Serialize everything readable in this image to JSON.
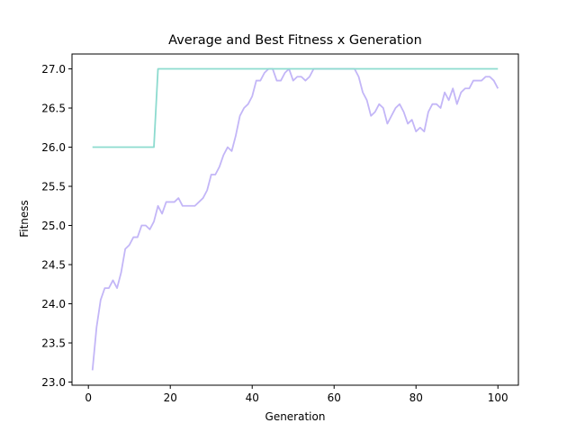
{
  "chart_data": {
    "type": "line",
    "title": "Average and Best Fitness x Generation",
    "xlabel": "Generation",
    "ylabel": "Fitness",
    "xlim": [
      -4,
      105
    ],
    "ylim": [
      22.96,
      27.19
    ],
    "xticks": [
      0,
      20,
      40,
      60,
      80,
      100
    ],
    "yticks": [
      23.0,
      23.5,
      24.0,
      24.5,
      25.0,
      25.5,
      26.0,
      26.5,
      27.0
    ],
    "grid": false,
    "legend": "none",
    "series": [
      {
        "color": "#c3b6f7",
        "x": [
          1,
          2,
          3,
          4,
          5,
          6,
          7,
          8,
          9,
          10,
          11,
          12,
          13,
          14,
          15,
          16,
          17,
          18,
          19,
          20,
          21,
          22,
          23,
          24,
          25,
          26,
          27,
          28,
          29,
          30,
          31,
          32,
          33,
          34,
          35,
          36,
          37,
          38,
          39,
          40,
          41,
          42,
          43,
          44,
          45,
          46,
          47,
          48,
          49,
          50,
          51,
          52,
          53,
          54,
          55,
          56,
          57,
          58,
          59,
          60,
          61,
          62,
          63,
          64,
          65,
          66,
          67,
          68,
          69,
          70,
          71,
          72,
          73,
          74,
          75,
          76,
          77,
          78,
          79,
          80,
          81,
          82,
          83,
          84,
          85,
          86,
          87,
          88,
          89,
          90,
          91,
          92,
          93,
          94,
          95,
          96,
          97,
          98,
          99,
          100
        ],
        "values": [
          23.15,
          23.7,
          24.05,
          24.2,
          24.2,
          24.3,
          24.2,
          24.4,
          24.7,
          24.75,
          24.85,
          24.85,
          25.0,
          25.0,
          24.95,
          25.05,
          25.25,
          25.15,
          25.3,
          25.3,
          25.3,
          25.35,
          25.25,
          25.25,
          25.25,
          25.25,
          25.3,
          25.35,
          25.45,
          25.65,
          25.65,
          25.75,
          25.9,
          26.0,
          25.95,
          26.15,
          26.4,
          26.5,
          26.55,
          26.65,
          26.85,
          26.85,
          26.95,
          27.0,
          27.0,
          26.85,
          26.85,
          26.95,
          27.0,
          26.85,
          26.9,
          26.9,
          26.85,
          26.9,
          27.0,
          27.0,
          27.0,
          27.0,
          27.0,
          27.0,
          27.0,
          27.0,
          27.0,
          27.0,
          27.0,
          26.9,
          26.7,
          26.6,
          26.4,
          26.45,
          26.55,
          26.5,
          26.3,
          26.4,
          26.5,
          26.55,
          26.45,
          26.3,
          26.35,
          26.2,
          26.25,
          26.2,
          26.45,
          26.55,
          26.55,
          26.5,
          26.7,
          26.6,
          26.75,
          26.55,
          26.7,
          26.75,
          26.75,
          26.85,
          26.85,
          26.85,
          26.9,
          26.9,
          26.85,
          26.75
        ]
      },
      {
        "color": "#8ddbcf",
        "x": [
          1,
          2,
          3,
          4,
          5,
          6,
          7,
          8,
          9,
          10,
          11,
          12,
          13,
          14,
          15,
          16,
          17,
          18,
          19,
          20,
          21,
          22,
          23,
          24,
          25,
          26,
          27,
          28,
          29,
          30,
          31,
          32,
          33,
          34,
          35,
          36,
          37,
          38,
          39,
          40,
          41,
          42,
          43,
          44,
          45,
          46,
          47,
          48,
          49,
          50,
          51,
          52,
          53,
          54,
          55,
          56,
          57,
          58,
          59,
          60,
          61,
          62,
          63,
          64,
          65,
          66,
          67,
          68,
          69,
          70,
          71,
          72,
          73,
          74,
          75,
          76,
          77,
          78,
          79,
          80,
          81,
          82,
          83,
          84,
          85,
          86,
          87,
          88,
          89,
          90,
          91,
          92,
          93,
          94,
          95,
          96,
          97,
          98,
          99,
          100
        ],
        "values": [
          26,
          26,
          26,
          26,
          26,
          26,
          26,
          26,
          26,
          26,
          26,
          26,
          26,
          26,
          26,
          26,
          27,
          27,
          27,
          27,
          27,
          27,
          27,
          27,
          27,
          27,
          27,
          27,
          27,
          27,
          27,
          27,
          27,
          27,
          27,
          27,
          27,
          27,
          27,
          27,
          27,
          27,
          27,
          27,
          27,
          27,
          27,
          27,
          27,
          27,
          27,
          27,
          27,
          27,
          27,
          27,
          27,
          27,
          27,
          27,
          27,
          27,
          27,
          27,
          27,
          27,
          27,
          27,
          27,
          27,
          27,
          27,
          27,
          27,
          27,
          27,
          27,
          27,
          27,
          27,
          27,
          27,
          27,
          27,
          27,
          27,
          27,
          27,
          27,
          27,
          27,
          27,
          27,
          27,
          27,
          27,
          27,
          27,
          27,
          27
        ]
      }
    ]
  }
}
